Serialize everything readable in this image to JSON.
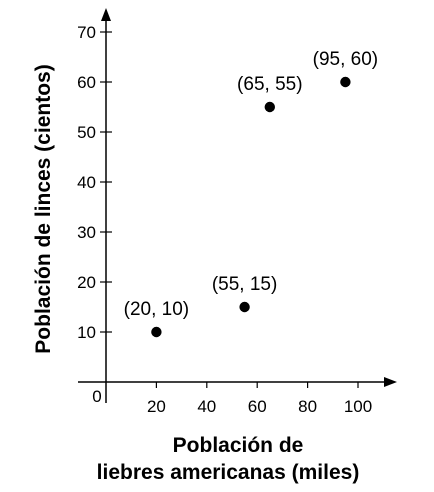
{
  "chart_data": {
    "type": "scatter",
    "title": "",
    "xlabel_lines": [
      "Población de",
      "liebres americanas (miles)"
    ],
    "ylabel": "Población de linces (cientos)",
    "xlim": [
      0,
      120
    ],
    "ylim": [
      0,
      75
    ],
    "x_ticks": [
      "20",
      "40",
      "60",
      "80",
      "100"
    ],
    "y_ticks": [
      "10",
      "20",
      "30",
      "40",
      "50",
      "60",
      "70"
    ],
    "origin_label": "0",
    "grid": false,
    "points": [
      {
        "x": 20,
        "y": 10,
        "label": "(20, 10)"
      },
      {
        "x": 55,
        "y": 15,
        "label": "(55, 15)"
      },
      {
        "x": 65,
        "y": 55,
        "label": "(65, 55)"
      },
      {
        "x": 95,
        "y": 60,
        "label": "(95, 60)"
      }
    ],
    "point_color": "#000000"
  }
}
